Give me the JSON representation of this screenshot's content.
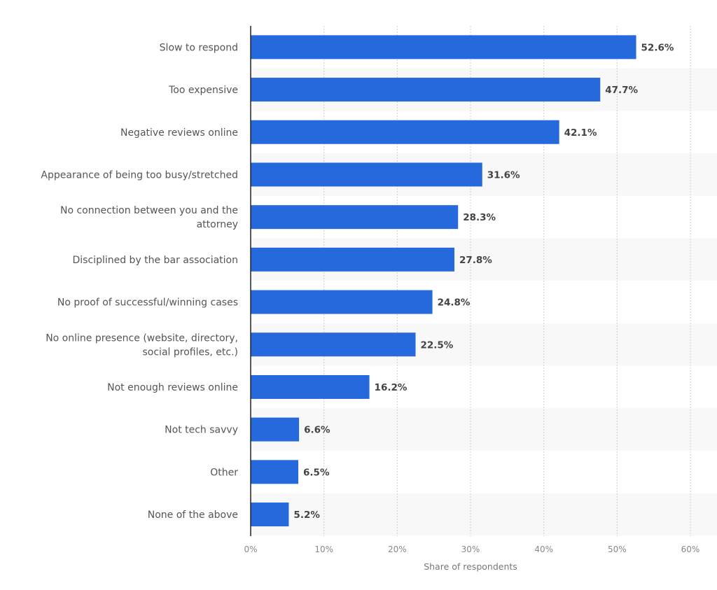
{
  "chart_data": {
    "type": "bar",
    "orientation": "horizontal",
    "categories": [
      [
        "Slow to respond"
      ],
      [
        "Too expensive"
      ],
      [
        "Negative reviews online"
      ],
      [
        "Appearance of being too busy/stretched"
      ],
      [
        "No connection between you and the",
        "attorney"
      ],
      [
        "Disciplined by the bar association"
      ],
      [
        "No proof of successful/winning cases"
      ],
      [
        "No online presence (website, directory,",
        "social profiles, etc.)"
      ],
      [
        "Not enough reviews online"
      ],
      [
        "Not tech savvy"
      ],
      [
        "Other"
      ],
      [
        "None of the above"
      ]
    ],
    "values": [
      52.6,
      47.7,
      42.1,
      31.6,
      28.3,
      27.8,
      24.8,
      22.5,
      16.2,
      6.6,
      6.5,
      5.2
    ],
    "value_labels": [
      "52.6%",
      "47.7%",
      "42.1%",
      "31.6%",
      "28.3%",
      "27.8%",
      "24.8%",
      "22.5%",
      "16.2%",
      "6.6%",
      "6.5%",
      "5.2%"
    ],
    "xlim": [
      0,
      60
    ],
    "x_ticks": [
      "0%",
      "10%",
      "20%",
      "30%",
      "40%",
      "50%",
      "60%"
    ],
    "xlabel": "Share of respondents",
    "ylabel": "",
    "title": "",
    "grid": true,
    "bar_color": "#2569dc",
    "band_color": "#f8f8f8"
  }
}
